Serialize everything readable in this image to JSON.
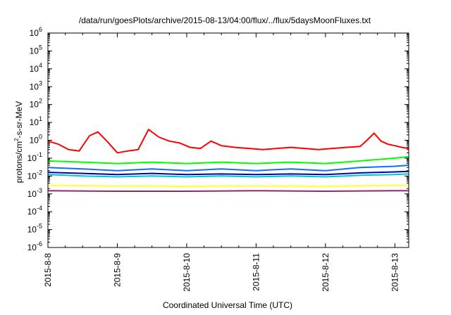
{
  "chart_data": {
    "type": "line",
    "title": "/data/run/goesPlots/archive/2015-08-13/04:00/flux/../flux/5daysMoonFluxes.txt",
    "xlabel": "Coordinated Universal Time (UTC)",
    "ylabel_parts": {
      "a": "protons/cm",
      "sup": "2",
      "b": "-s-sr-MeV"
    },
    "y_scale": "log",
    "ylim": [
      1e-06,
      1000000.0
    ],
    "y_ticks": [
      {
        "base": "10",
        "exp": "-6",
        "value": 1e-06
      },
      {
        "base": "10",
        "exp": "-5",
        "value": 1e-05
      },
      {
        "base": "10",
        "exp": "-4",
        "value": 0.0001
      },
      {
        "base": "10",
        "exp": "-3",
        "value": 0.001
      },
      {
        "base": "10",
        "exp": "-2",
        "value": 0.01
      },
      {
        "base": "10",
        "exp": "-1",
        "value": 0.1
      },
      {
        "base": "10",
        "exp": "0",
        "value": 1
      },
      {
        "base": "10",
        "exp": "1",
        "value": 10
      },
      {
        "base": "10",
        "exp": "2",
        "value": 100
      },
      {
        "base": "10",
        "exp": "3",
        "value": 1000
      },
      {
        "base": "10",
        "exp": "4",
        "value": 10000
      },
      {
        "base": "10",
        "exp": "5",
        "value": 100000
      },
      {
        "base": "10",
        "exp": "6",
        "value": 1000000
      }
    ],
    "x_range_days": [
      0,
      5.2
    ],
    "x_ticks": [
      {
        "label": "2015-8-8",
        "day": 0
      },
      {
        "label": "2015-8-9",
        "day": 1
      },
      {
        "label": "2015-8-10",
        "day": 2
      },
      {
        "label": "2015-8-11",
        "day": 3
      },
      {
        "label": "2015-8-12",
        "day": 4
      },
      {
        "label": "2015-8-13",
        "day": 5
      }
    ],
    "grid": false,
    "legend": "none",
    "series": [
      {
        "color": "#ff0000",
        "x": [
          0,
          0.15,
          0.3,
          0.45,
          0.6,
          0.72,
          0.85,
          1.0,
          1.15,
          1.3,
          1.45,
          1.6,
          1.75,
          1.9,
          2.05,
          2.2,
          2.35,
          2.5,
          2.7,
          2.9,
          3.1,
          3.3,
          3.5,
          3.7,
          3.9,
          4.1,
          4.3,
          4.5,
          4.6,
          4.7,
          4.8,
          4.9,
          5.0,
          5.1,
          5.2
        ],
        "y": [
          0.9,
          0.6,
          0.3,
          0.25,
          1.8,
          2.9,
          0.9,
          0.2,
          0.25,
          0.3,
          4.0,
          1.5,
          0.9,
          0.7,
          0.4,
          0.35,
          0.9,
          0.5,
          0.4,
          0.35,
          0.3,
          0.35,
          0.4,
          0.35,
          0.3,
          0.35,
          0.4,
          0.45,
          1.0,
          2.5,
          0.9,
          0.6,
          0.5,
          0.4,
          0.35
        ]
      },
      {
        "color": "#00ff00",
        "x": [
          0,
          0.5,
          1.0,
          1.5,
          2.0,
          2.5,
          3.0,
          3.5,
          4.0,
          4.5,
          5.0,
          5.2
        ],
        "y": [
          0.07,
          0.06,
          0.05,
          0.06,
          0.05,
          0.06,
          0.05,
          0.06,
          0.05,
          0.07,
          0.1,
          0.12
        ]
      },
      {
        "color": "#0b6fff",
        "x": [
          0,
          0.5,
          1.0,
          1.5,
          2.0,
          2.5,
          3.0,
          3.5,
          4.0,
          4.5,
          5.0,
          5.2
        ],
        "y": [
          0.03,
          0.025,
          0.02,
          0.025,
          0.02,
          0.025,
          0.02,
          0.025,
          0.02,
          0.03,
          0.035,
          0.04
        ]
      },
      {
        "color": "#00c8c8",
        "x": [
          0,
          0.5,
          1.0,
          1.5,
          2.0,
          2.5,
          3.0,
          3.5,
          4.0,
          4.5,
          5.0,
          5.2
        ],
        "y": [
          0.012,
          0.01,
          0.009,
          0.01,
          0.009,
          0.01,
          0.009,
          0.01,
          0.009,
          0.011,
          0.012,
          0.013
        ]
      },
      {
        "color": "#0000b4",
        "x": [
          0,
          0.5,
          1.0,
          1.5,
          2.0,
          2.5,
          3.0,
          3.5,
          4.0,
          4.5,
          5.0,
          5.2
        ],
        "y": [
          0.016,
          0.014,
          0.012,
          0.014,
          0.012,
          0.013,
          0.012,
          0.013,
          0.012,
          0.015,
          0.017,
          0.018
        ]
      },
      {
        "color": "#ffff3c",
        "x": [
          0,
          1.0,
          2.0,
          3.0,
          4.0,
          5.0,
          5.2
        ],
        "y": [
          0.003,
          0.0028,
          0.0027,
          0.0028,
          0.0027,
          0.003,
          0.003
        ]
      },
      {
        "color": "#8b2a6e",
        "x": [
          0,
          1.0,
          2.0,
          3.0,
          4.0,
          5.0,
          5.2
        ],
        "y": [
          0.0015,
          0.0014,
          0.0014,
          0.0015,
          0.0014,
          0.0015,
          0.0015
        ]
      }
    ]
  }
}
